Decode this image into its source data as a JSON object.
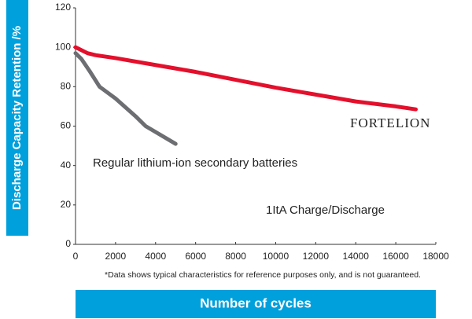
{
  "chart_data": {
    "type": "line",
    "xlabel": "Number of cycles",
    "ylabel": "Discharge Capacity Retention /%",
    "footnote": "*Data shows typical characteristics for reference purposes only, and is not guaranteed.",
    "annotation": "1ItA Charge/Discharge",
    "xlim": [
      0,
      18000
    ],
    "xticks": [
      0,
      2000,
      4000,
      6000,
      8000,
      10000,
      12000,
      14000,
      16000,
      18000
    ],
    "ylim": [
      0,
      120
    ],
    "yticks": [
      0,
      20,
      40,
      60,
      80,
      100,
      120
    ],
    "grid": false,
    "series": [
      {
        "name": "FORTELION",
        "color": "#e3102c",
        "x": [
          0,
          200,
          600,
          1000,
          2000,
          4000,
          6000,
          8000,
          10000,
          12000,
          14000,
          16000,
          17000
        ],
        "values": [
          100,
          99,
          97,
          96,
          94.5,
          91,
          87.5,
          83.5,
          79.5,
          76,
          72.5,
          70,
          68.5
        ]
      },
      {
        "name": "Regular lithium-ion secondary batteries",
        "color": "#6d6e71",
        "x": [
          0,
          300,
          700,
          1200,
          2000,
          3000,
          3500,
          4000,
          5000
        ],
        "values": [
          97,
          94,
          88,
          80,
          74,
          65,
          60,
          57,
          51
        ]
      }
    ]
  }
}
